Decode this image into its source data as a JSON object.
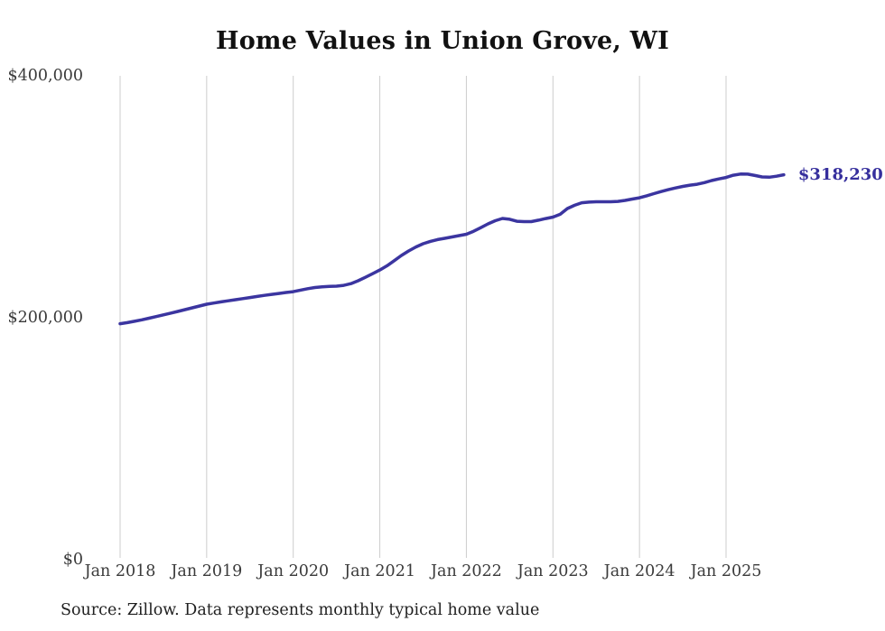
{
  "page": {
    "background": "#ffffff"
  },
  "chart_data": {
    "type": "line",
    "title": "Home Values in Union Grove, WI",
    "series_name": "Monthly typical home value",
    "x_start_month": "2018-01",
    "x_end_month": "2025-09",
    "x_tick_labels": [
      "Jan 2018",
      "Jan 2019",
      "Jan 2020",
      "Jan 2021",
      "Jan 2022",
      "Jan 2023",
      "Jan 2024",
      "Jan 2025"
    ],
    "x_tick_month_indices": [
      0,
      12,
      24,
      36,
      48,
      60,
      72,
      84
    ],
    "y_ticks": [
      {
        "label": "$0",
        "value": 0
      },
      {
        "label": "$200,000",
        "value": 200000
      },
      {
        "label": "$400,000",
        "value": 400000
      }
    ],
    "ylim": [
      0,
      400000
    ],
    "grid": "vertical-only",
    "legend": "none",
    "end_label": "$318,230",
    "end_value": 318230,
    "line_color": "#3b35a0",
    "end_label_color": "#362f9d",
    "grid_color": "#cccccc",
    "values": [
      195100,
      196000,
      197100,
      198300,
      199600,
      201000,
      202400,
      203800,
      205200,
      206700,
      208200,
      209700,
      211200,
      212200,
      213100,
      214000,
      214900,
      215800,
      216700,
      217600,
      218500,
      219300,
      220100,
      220900,
      221600,
      222800,
      224000,
      225000,
      225600,
      225900,
      226100,
      226800,
      228200,
      230600,
      233400,
      236400,
      239500,
      243000,
      247200,
      251500,
      255200,
      258500,
      261200,
      263100,
      264600,
      265700,
      266800,
      267900,
      269000,
      271500,
      274500,
      277600,
      280200,
      282100,
      281400,
      279800,
      279500,
      279500,
      280700,
      282000,
      283200,
      285500,
      290300,
      293000,
      295100,
      295600,
      295900,
      295900,
      295900,
      296200,
      297000,
      298100,
      299200,
      300800,
      302600,
      304300,
      305900,
      307300,
      308600,
      309600,
      310400,
      311700,
      313400,
      314800,
      316000,
      317800,
      318800,
      318700,
      317600,
      316400,
      316200,
      317000,
      318230
    ]
  },
  "footer": {
    "source": "Source: Zillow. Data represents monthly typical home value"
  }
}
